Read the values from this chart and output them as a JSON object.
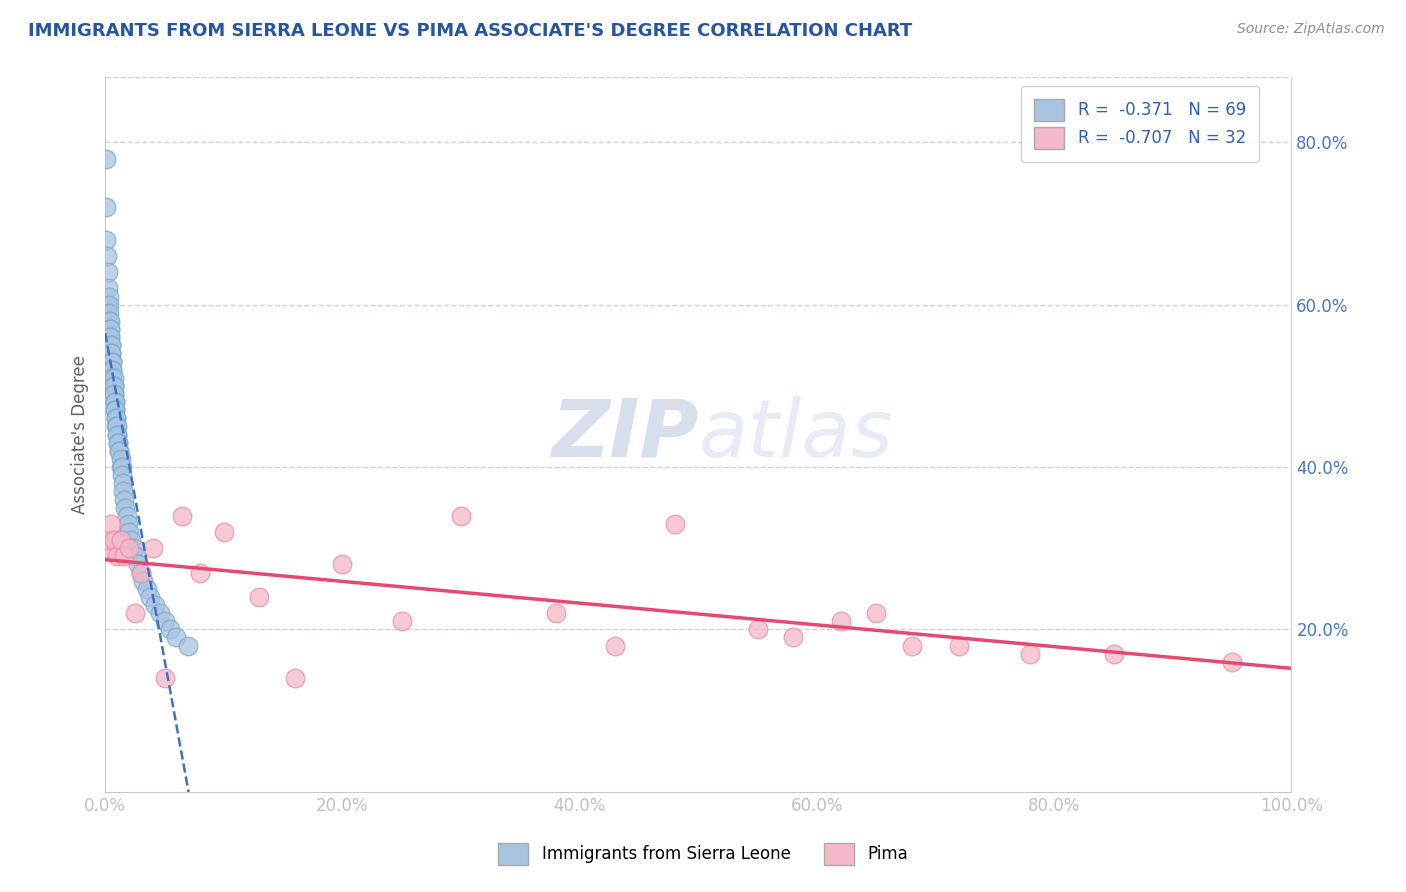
{
  "title": "IMMIGRANTS FROM SIERRA LEONE VS PIMA ASSOCIATE'S DEGREE CORRELATION CHART",
  "source_text": "Source: ZipAtlas.com",
  "ylabel": "Associate's Degree",
  "xlim": [
    0.0,
    1.0
  ],
  "ylim": [
    0.0,
    0.88
  ],
  "x_tick_labels": [
    "0.0%",
    "20.0%",
    "40.0%",
    "60.0%",
    "80.0%",
    "100.0%"
  ],
  "x_tick_positions": [
    0.0,
    0.2,
    0.4,
    0.6,
    0.8,
    1.0
  ],
  "y_tick_labels": [
    "20.0%",
    "40.0%",
    "60.0%",
    "80.0%"
  ],
  "y_tick_positions": [
    0.2,
    0.4,
    0.6,
    0.8
  ],
  "blue_R": -0.371,
  "blue_N": 69,
  "pink_R": -0.707,
  "pink_N": 32,
  "legend_label_blue": "Immigrants from Sierra Leone",
  "legend_label_pink": "Pima",
  "blue_color": "#a8c4e0",
  "blue_edge_color": "#7aaad0",
  "pink_color": "#f4b8c8",
  "pink_edge_color": "#e890a8",
  "blue_line_color": "#4070c8",
  "pink_line_color": "#e84870",
  "background_color": "#ffffff",
  "grid_color": "#c8d4e8",
  "title_color": "#2855a0",
  "ylabel_color": "#606060",
  "tick_label_color": "#4878c0",
  "watermark_zip": "ZIP",
  "watermark_atlas": "atlas",
  "blue_scatter_x": [
    0.0005,
    0.001,
    0.001,
    0.0015,
    0.002,
    0.002,
    0.002,
    0.003,
    0.003,
    0.003,
    0.003,
    0.004,
    0.004,
    0.004,
    0.004,
    0.004,
    0.005,
    0.005,
    0.005,
    0.005,
    0.006,
    0.006,
    0.006,
    0.006,
    0.006,
    0.007,
    0.007,
    0.007,
    0.007,
    0.007,
    0.008,
    0.008,
    0.008,
    0.008,
    0.009,
    0.009,
    0.009,
    0.01,
    0.01,
    0.01,
    0.011,
    0.011,
    0.012,
    0.012,
    0.013,
    0.013,
    0.014,
    0.014,
    0.015,
    0.015,
    0.016,
    0.017,
    0.018,
    0.019,
    0.02,
    0.022,
    0.024,
    0.026,
    0.028,
    0.03,
    0.032,
    0.035,
    0.038,
    0.042,
    0.046,
    0.05,
    0.055,
    0.06,
    0.07
  ],
  "blue_scatter_y": [
    0.78,
    0.72,
    0.68,
    0.66,
    0.64,
    0.62,
    0.6,
    0.61,
    0.6,
    0.59,
    0.58,
    0.58,
    0.57,
    0.57,
    0.56,
    0.56,
    0.55,
    0.55,
    0.54,
    0.54,
    0.53,
    0.53,
    0.52,
    0.52,
    0.51,
    0.51,
    0.5,
    0.5,
    0.49,
    0.49,
    0.48,
    0.48,
    0.47,
    0.47,
    0.46,
    0.46,
    0.45,
    0.45,
    0.44,
    0.44,
    0.43,
    0.43,
    0.42,
    0.42,
    0.41,
    0.4,
    0.4,
    0.39,
    0.38,
    0.37,
    0.36,
    0.35,
    0.34,
    0.33,
    0.32,
    0.31,
    0.3,
    0.29,
    0.28,
    0.27,
    0.26,
    0.25,
    0.24,
    0.23,
    0.22,
    0.21,
    0.2,
    0.19,
    0.18
  ],
  "pink_scatter_x": [
    0.001,
    0.003,
    0.005,
    0.007,
    0.01,
    0.013,
    0.016,
    0.02,
    0.025,
    0.03,
    0.04,
    0.05,
    0.065,
    0.08,
    0.1,
    0.13,
    0.16,
    0.2,
    0.25,
    0.3,
    0.38,
    0.43,
    0.48,
    0.55,
    0.58,
    0.62,
    0.65,
    0.68,
    0.72,
    0.78,
    0.85,
    0.95
  ],
  "pink_scatter_y": [
    0.3,
    0.31,
    0.33,
    0.31,
    0.29,
    0.31,
    0.29,
    0.3,
    0.22,
    0.27,
    0.3,
    0.14,
    0.34,
    0.27,
    0.32,
    0.24,
    0.14,
    0.28,
    0.21,
    0.34,
    0.22,
    0.18,
    0.33,
    0.2,
    0.19,
    0.21,
    0.22,
    0.18,
    0.18,
    0.17,
    0.17,
    0.16
  ],
  "blue_line_x_start": 0.0,
  "blue_line_x_end": 0.22,
  "pink_line_x_start": 0.0,
  "pink_line_x_end": 1.0
}
